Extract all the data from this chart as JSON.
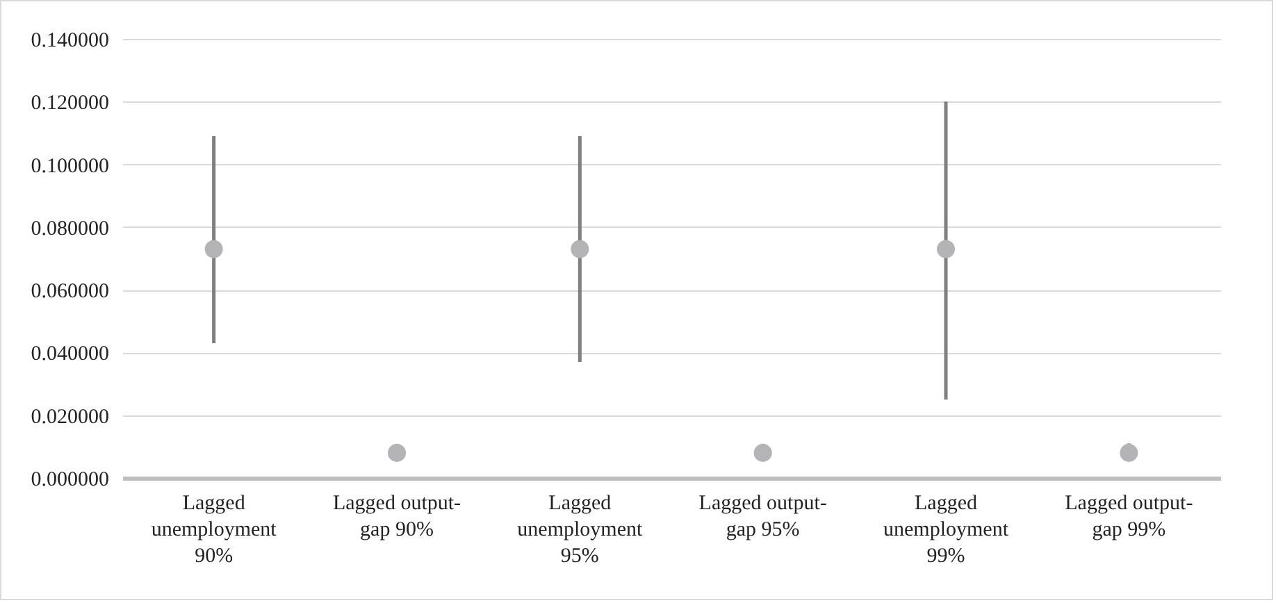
{
  "chart_data": {
    "type": "scatter",
    "categories": [
      "Lagged unemployment 90%",
      "Lagged output-gap 90%",
      "Lagged unemployment 95%",
      "Lagged output-gap 95%",
      "Lagged unemployment 99%",
      "Lagged output-gap 99%"
    ],
    "series": [
      {
        "color": "#b4b4b7",
        "values": [
          0.073,
          0.008,
          0.073,
          0.008,
          0.073,
          0.008
        ],
        "errors": [
          [
            0.043,
            0.109
          ],
          null,
          [
            0.037,
            0.109
          ],
          null,
          [
            0.025,
            0.12
          ],
          [
            0.006,
            0.011
          ]
        ]
      }
    ],
    "ylim": [
      0,
      0.14
    ],
    "yticks": [
      {
        "value": 0,
        "label": "0.000000"
      },
      {
        "value": 0.02,
        "label": "0.020000"
      },
      {
        "value": 0.04,
        "label": "0.040000"
      },
      {
        "value": 0.06,
        "label": "0.060000"
      },
      {
        "value": 0.08,
        "label": "0.080000"
      },
      {
        "value": 0.1,
        "label": "0.100000"
      },
      {
        "value": 0.12,
        "label": "0.120000"
      },
      {
        "value": 0.14,
        "label": "0.140000"
      }
    ],
    "grid": "y",
    "marker": "circle"
  }
}
